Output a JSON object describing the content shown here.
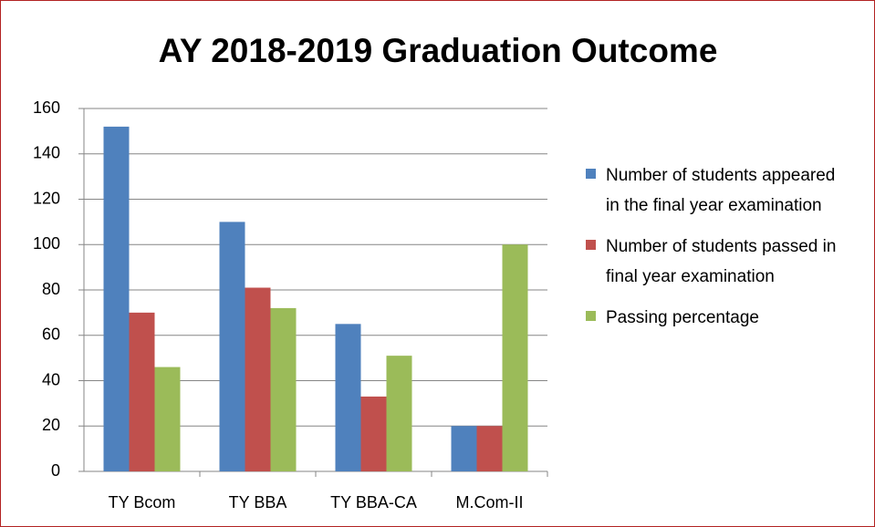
{
  "chart_data": {
    "type": "bar",
    "title": "AY 2018-2019 Graduation Outcome",
    "categories": [
      "TY Bcom",
      "TY BBA",
      "TY BBA-CA",
      "M.Com-II"
    ],
    "series": [
      {
        "name": "Number of students appeared in the final year examination",
        "color": "#4f81bd",
        "values": [
          152,
          110,
          65,
          20
        ]
      },
      {
        "name": "Number of students passed in final year examination",
        "color": "#c0504d",
        "values": [
          70,
          81,
          33,
          20
        ]
      },
      {
        "name": "Passing percentage",
        "color": "#9bbb59",
        "values": [
          46,
          72,
          51,
          100
        ]
      }
    ],
    "ylim": [
      0,
      160
    ],
    "yticks": [
      0,
      20,
      40,
      60,
      80,
      100,
      120,
      140,
      160
    ],
    "grid": true,
    "legend": "right"
  }
}
